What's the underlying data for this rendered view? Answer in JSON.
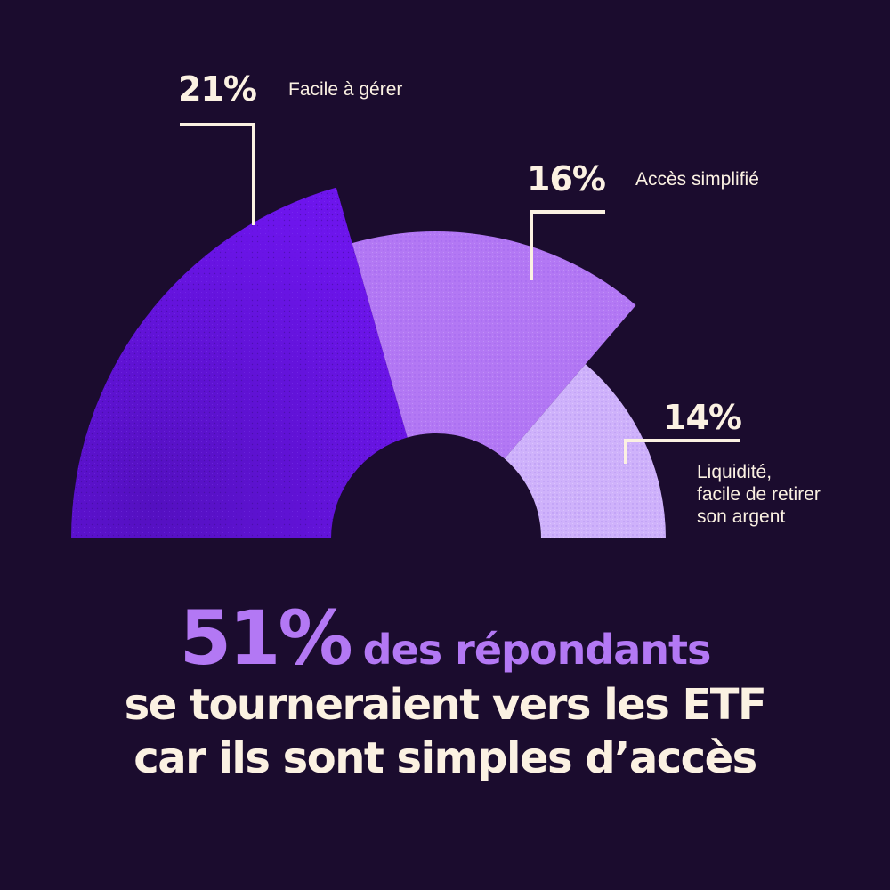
{
  "chart_data": {
    "type": "pie",
    "slices": [
      {
        "label": "Facile à gérer",
        "value": 21,
        "value_label": "21%",
        "color": "#6a14e6"
      },
      {
        "label": "Accès simplifié",
        "value": 16,
        "value_label": "16%",
        "color": "#b378f4"
      },
      {
        "label": "Liquidité, facile de retirer son argent",
        "label_lines": [
          "Liquidité,",
          "facile de retirer",
          "son argent"
        ],
        "value": 14,
        "value_label": "14%",
        "color": "#cfb2fb"
      }
    ],
    "title": "",
    "legend": "none"
  },
  "headline": {
    "big": "51%",
    "accent": "des répondants",
    "line2": "se tourneraient vers les ETF",
    "line3": "car ils sont simples d’accès"
  },
  "colors": {
    "background": "#1b0c2e",
    "text": "#fbf1e2",
    "accent": "#b378f4"
  }
}
